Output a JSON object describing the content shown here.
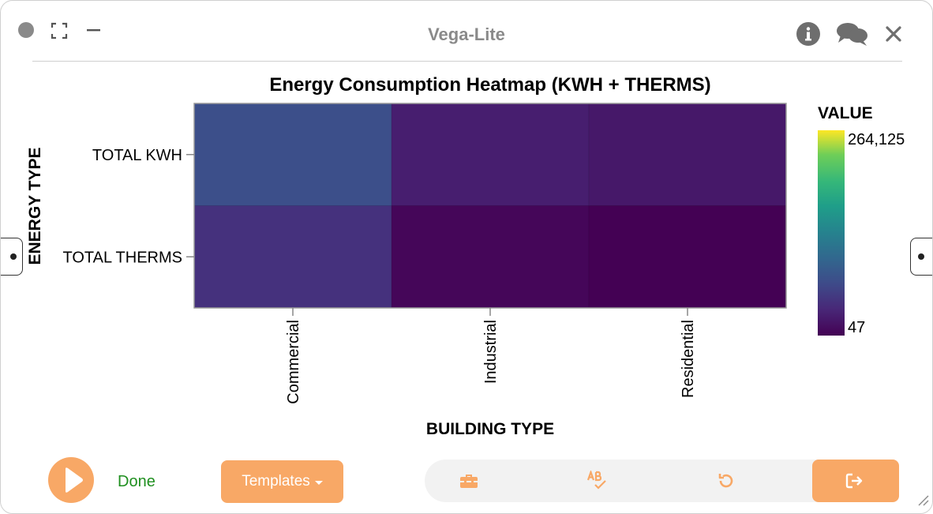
{
  "window": {
    "title": "Vega-Lite"
  },
  "chart_data": {
    "type": "heatmap",
    "title": "Energy Consumption Heatmap (KWH + THERMS)",
    "xlabel": "BUILDING TYPE",
    "ylabel": "ENERGY TYPE",
    "x": [
      "Commercial",
      "Industrial",
      "Residential"
    ],
    "y": [
      "TOTAL KWH",
      "TOTAL THERMS"
    ],
    "values": [
      [
        72000,
        26000,
        20000
      ],
      [
        43000,
        4500,
        47
      ]
    ],
    "colorscale": "viridis",
    "legend": {
      "title": "VALUE",
      "max_label": "264,125",
      "min_label": "47",
      "min": 47,
      "max": 264125,
      "placement": "right"
    }
  },
  "bottom": {
    "status": "Done",
    "templates_label": "Templates"
  },
  "icons": {
    "window_dot": "circle-icon",
    "expand": "expand-icon",
    "minimize": "minimize-icon",
    "info": "info-icon",
    "comments": "comments-icon",
    "close": "close-icon",
    "play": "play-icon",
    "toolbox": "toolbox-icon",
    "spellcheck": "spellcheck-icon",
    "undo": "undo-icon",
    "export": "export-icon"
  },
  "colors": {
    "accent": "#f8a866",
    "done": "#1f8f1f",
    "title_gray": "#8a8a8a"
  }
}
